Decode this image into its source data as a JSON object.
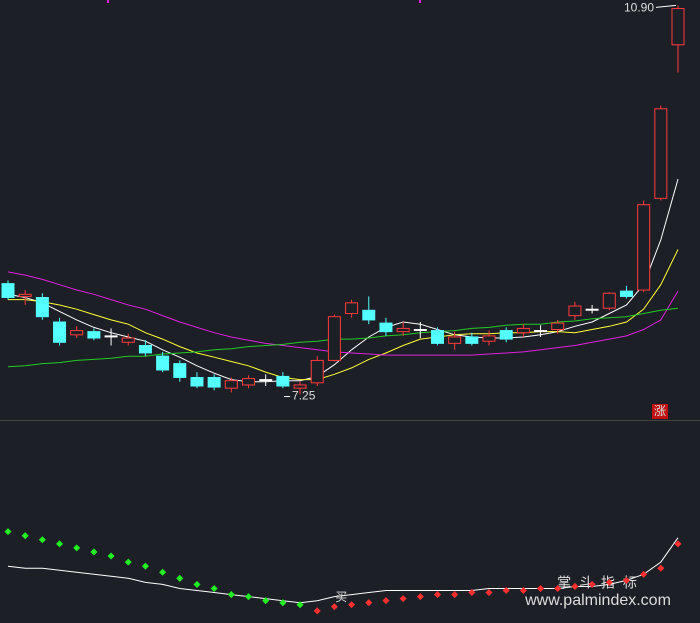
{
  "chart_data": [
    {
      "type": "candlestick",
      "ylim": [
        7.03,
        10.95
      ],
      "open": [
        8.29,
        8.17,
        8.16,
        7.93,
        7.81,
        7.84,
        7.8,
        7.74,
        7.71,
        7.61,
        7.54,
        7.41,
        7.41,
        7.31,
        7.34,
        7.39,
        7.42,
        7.31,
        7.36,
        7.57,
        8.01,
        8.04,
        7.92,
        7.84,
        7.86,
        7.85,
        7.73,
        7.79,
        7.75,
        7.85,
        7.83,
        7.85,
        7.86,
        7.99,
        8.05,
        8.06,
        8.22,
        8.23,
        9.09,
        10.53
      ],
      "high": [
        8.32,
        8.23,
        8.2,
        7.97,
        7.89,
        7.87,
        7.87,
        7.82,
        7.76,
        7.65,
        7.57,
        7.46,
        7.44,
        7.41,
        7.43,
        7.44,
        7.46,
        7.37,
        7.61,
        8.0,
        8.14,
        8.17,
        7.97,
        7.93,
        7.93,
        7.88,
        7.84,
        7.83,
        7.85,
        7.88,
        7.91,
        7.9,
        7.95,
        8.12,
        8.09,
        8.21,
        8.27,
        9.07,
        9.96,
        10.9
      ],
      "low": [
        8.14,
        8.09,
        7.95,
        7.71,
        7.78,
        7.76,
        7.71,
        7.71,
        7.61,
        7.46,
        7.37,
        7.31,
        7.29,
        7.27,
        7.31,
        7.33,
        7.31,
        7.25,
        7.33,
        7.56,
        7.97,
        7.91,
        7.8,
        7.8,
        7.78,
        7.71,
        7.67,
        7.71,
        7.71,
        7.74,
        7.79,
        7.79,
        7.82,
        7.95,
        8.01,
        8.04,
        8.15,
        8.21,
        9.07,
        10.27
      ],
      "close": [
        8.16,
        8.19,
        7.98,
        7.74,
        7.85,
        7.78,
        7.8,
        7.78,
        7.64,
        7.48,
        7.41,
        7.33,
        7.32,
        7.38,
        7.4,
        7.39,
        7.33,
        7.34,
        7.57,
        7.98,
        8.11,
        7.95,
        7.84,
        7.87,
        7.86,
        7.73,
        7.79,
        7.73,
        7.8,
        7.77,
        7.87,
        7.85,
        7.92,
        8.08,
        8.05,
        8.2,
        8.17,
        9.03,
        9.93,
        10.87
      ],
      "up_color": "#ff3b3b",
      "down_color": "#54ffff",
      "flat_color": "#ffffff",
      "series": [
        {
          "color": "#ffffff",
          "values": [
            8.19,
            8.16,
            8.11,
            8.03,
            7.95,
            7.88,
            7.83,
            7.79,
            7.75,
            7.67,
            7.6,
            7.52,
            7.45,
            7.39,
            7.37,
            7.37,
            7.38,
            7.38,
            7.42,
            7.53,
            7.67,
            7.79,
            7.88,
            7.93,
            7.91,
            7.86,
            7.81,
            7.79,
            7.78,
            7.78,
            7.79,
            7.81,
            7.84,
            7.89,
            7.93,
            8.01,
            8.09,
            8.28,
            8.7,
            9.27
          ]
        },
        {
          "color": "#ffff33",
          "values": [
            8.14,
            8.14,
            8.12,
            8.09,
            8.05,
            8.0,
            7.95,
            7.91,
            7.83,
            7.77,
            7.7,
            7.64,
            7.6,
            7.56,
            7.52,
            7.46,
            7.41,
            7.39,
            7.39,
            7.44,
            7.5,
            7.58,
            7.64,
            7.71,
            7.77,
            7.79,
            7.81,
            7.82,
            7.82,
            7.83,
            7.83,
            7.84,
            7.84,
            7.83,
            7.86,
            7.89,
            7.93,
            8.05,
            8.28,
            8.61
          ]
        },
        {
          "color": "#e020e0",
          "values": [
            8.4,
            8.37,
            8.33,
            8.28,
            8.23,
            8.19,
            8.14,
            8.09,
            8.05,
            7.99,
            7.93,
            7.88,
            7.83,
            7.79,
            7.76,
            7.73,
            7.71,
            7.69,
            7.67,
            7.65,
            7.64,
            7.63,
            7.62,
            7.62,
            7.62,
            7.62,
            7.62,
            7.62,
            7.63,
            7.64,
            7.65,
            7.67,
            7.69,
            7.71,
            7.74,
            7.77,
            7.8,
            7.86,
            7.95,
            8.22
          ]
        },
        {
          "color": "#22cc22",
          "values": [
            7.51,
            7.52,
            7.54,
            7.55,
            7.57,
            7.58,
            7.59,
            7.61,
            7.61,
            7.63,
            7.64,
            7.65,
            7.67,
            7.68,
            7.7,
            7.71,
            7.72,
            7.74,
            7.75,
            7.77,
            7.77,
            7.78,
            7.8,
            7.81,
            7.83,
            7.84,
            7.85,
            7.87,
            7.88,
            7.9,
            7.91,
            7.91,
            7.93,
            7.94,
            7.96,
            7.97,
            7.98,
            8.01,
            8.04,
            8.06
          ]
        }
      ],
      "max_label": {
        "value": 10.9,
        "label": "10.90"
      },
      "min_label": {
        "value": 7.25,
        "label": "7.25"
      },
      "badge": "涨"
    },
    {
      "type": "indicator",
      "ylim": [
        0,
        100
      ],
      "series": [
        {
          "color": "#ffffff",
          "style": "line",
          "values": [
            28,
            27,
            27,
            26,
            25,
            24,
            23,
            22,
            20,
            19,
            17,
            16,
            15,
            14,
            13,
            12,
            11,
            10,
            11,
            13,
            14,
            15,
            16,
            16,
            16,
            16,
            16,
            16,
            17,
            17,
            17,
            17,
            17,
            18,
            18,
            19,
            21,
            24,
            30,
            42
          ]
        },
        {
          "color": "#22ee22",
          "style": "dots",
          "values": [
            45,
            43,
            41,
            39,
            37,
            35,
            33,
            30,
            28,
            25,
            22,
            19,
            17,
            14,
            13,
            11,
            10,
            9,
            null,
            null,
            null,
            null,
            null,
            null,
            null,
            null,
            null,
            null,
            null,
            null,
            null,
            null,
            null,
            null,
            null,
            null,
            null,
            null,
            null,
            null
          ]
        },
        {
          "color": "#ff3030",
          "style": "dots",
          "values": [
            null,
            null,
            null,
            null,
            null,
            null,
            null,
            null,
            null,
            null,
            null,
            null,
            null,
            null,
            null,
            null,
            null,
            null,
            6,
            8,
            9,
            10,
            11,
            12,
            13,
            14,
            14,
            15,
            15,
            16,
            16,
            17,
            17,
            18,
            19,
            20,
            21,
            24,
            27,
            39
          ]
        }
      ],
      "signal": "买"
    }
  ],
  "watermark": {
    "title": "掌 斗 指 标",
    "url": "www.palmindex.com"
  }
}
